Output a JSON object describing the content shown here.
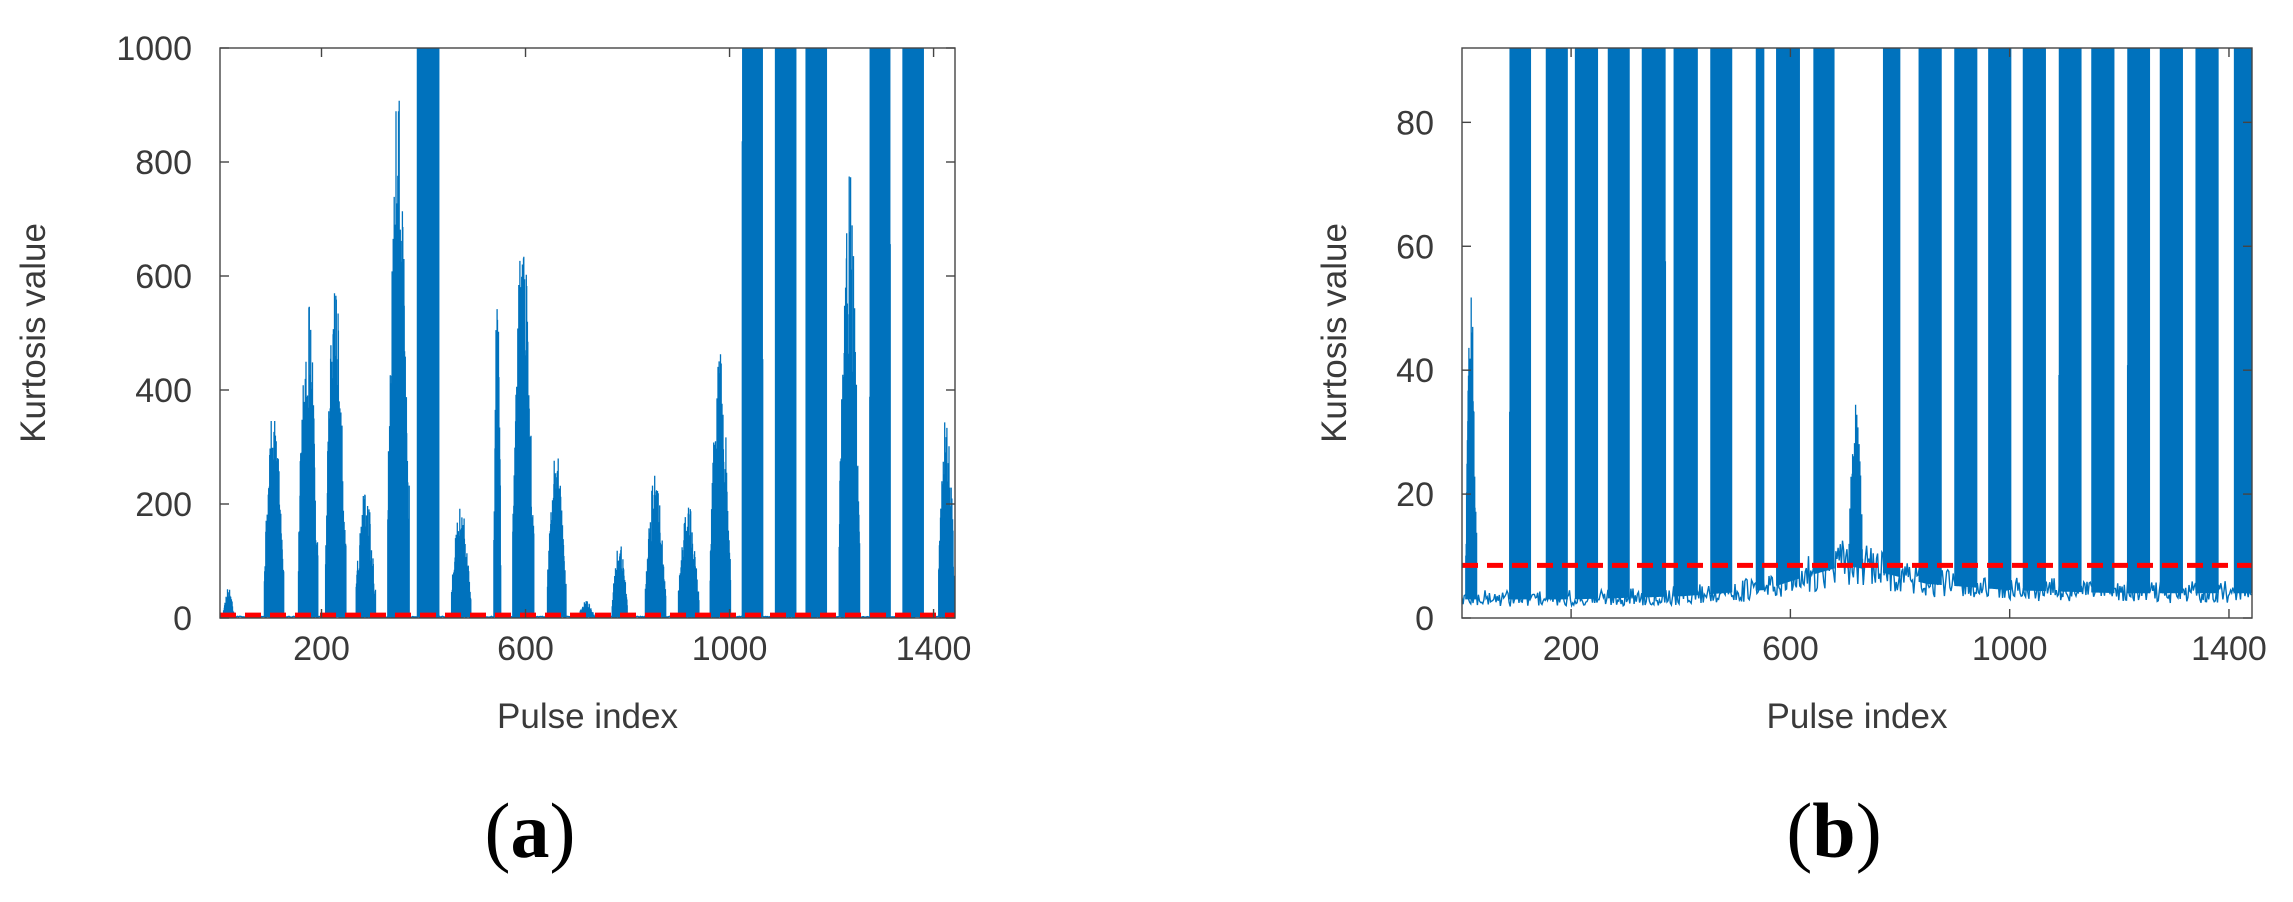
{
  "chart_data": [
    {
      "type": "line",
      "panel": "a",
      "xlabel": "Pulse index",
      "ylabel": "Kurtosis value",
      "xlim": [
        1,
        1442
      ],
      "ylim": [
        0,
        1000
      ],
      "xticks": [
        200,
        600,
        1000,
        1400
      ],
      "yticks": [
        0,
        200,
        400,
        600,
        800,
        1000
      ],
      "grid": false,
      "series_color": "#0072BD",
      "threshold": {
        "value": 5,
        "color": "#FF0000",
        "style": "dashed"
      },
      "bursts": [
        {
          "start": 8,
          "end": 28,
          "peak": 55
        },
        {
          "start": 88,
          "end": 126,
          "peak": 370
        },
        {
          "start": 155,
          "end": 193,
          "peak": 585
        },
        {
          "start": 208,
          "end": 248,
          "peak": 590
        },
        {
          "start": 268,
          "end": 306,
          "peak": 235
        },
        {
          "start": 330,
          "end": 372,
          "peak": 935
        },
        {
          "start": 388,
          "end": 430,
          "peak": 1000
        },
        {
          "start": 455,
          "end": 493,
          "peak": 200
        },
        {
          "start": 538,
          "end": 552,
          "peak": 635
        },
        {
          "start": 575,
          "end": 617,
          "peak": 685
        },
        {
          "start": 643,
          "end": 680,
          "peak": 305
        },
        {
          "start": 705,
          "end": 735,
          "peak": 30
        },
        {
          "start": 770,
          "end": 800,
          "peak": 135
        },
        {
          "start": 835,
          "end": 875,
          "peak": 250
        },
        {
          "start": 900,
          "end": 940,
          "peak": 200
        },
        {
          "start": 962,
          "end": 1002,
          "peak": 470
        },
        {
          "start": 1025,
          "end": 1065,
          "peak": 1000
        },
        {
          "start": 1090,
          "end": 1130,
          "peak": 1000
        },
        {
          "start": 1150,
          "end": 1190,
          "peak": 1000
        },
        {
          "start": 1215,
          "end": 1255,
          "peak": 800
        },
        {
          "start": 1275,
          "end": 1315,
          "peak": 1000
        },
        {
          "start": 1340,
          "end": 1380,
          "peak": 1000
        },
        {
          "start": 1410,
          "end": 1442,
          "peak": 365
        }
      ],
      "panel_label": {
        "letter": "a",
        "open": "(",
        "close": ")"
      }
    },
    {
      "type": "line",
      "panel": "b",
      "xlabel": "Pulse index",
      "ylabel": "Kurtosis value",
      "xlim": [
        1,
        1442
      ],
      "ylim": [
        0,
        92
      ],
      "xticks": [
        200,
        600,
        1000,
        1400
      ],
      "yticks": [
        0,
        20,
        40,
        60,
        80
      ],
      "grid": false,
      "series_color": "#0072BD",
      "threshold": {
        "value": 8.5,
        "color": "#FF0000",
        "style": "dashed"
      },
      "baseline": {
        "x": [
          1,
          200,
          400,
          550,
          620,
          700,
          760,
          850,
          1000,
          1200,
          1442
        ],
        "y": [
          3,
          3,
          3.5,
          4.5,
          6.5,
          8.5,
          7.5,
          5.5,
          4.5,
          4,
          4
        ]
      },
      "bursts": [
        {
          "start": 8,
          "end": 28,
          "peak": 55
        },
        {
          "start": 88,
          "end": 126,
          "peak": 92
        },
        {
          "start": 155,
          "end": 193,
          "peak": 92
        },
        {
          "start": 208,
          "end": 248,
          "peak": 92
        },
        {
          "start": 268,
          "end": 306,
          "peak": 92
        },
        {
          "start": 330,
          "end": 372,
          "peak": 92
        },
        {
          "start": 388,
          "end": 430,
          "peak": 92
        },
        {
          "start": 455,
          "end": 493,
          "peak": 92
        },
        {
          "start": 538,
          "end": 552,
          "peak": 92
        },
        {
          "start": 575,
          "end": 617,
          "peak": 92
        },
        {
          "start": 643,
          "end": 680,
          "peak": 92
        },
        {
          "start": 705,
          "end": 735,
          "peak": 35
        },
        {
          "start": 770,
          "end": 800,
          "peak": 92
        },
        {
          "start": 835,
          "end": 875,
          "peak": 92
        },
        {
          "start": 900,
          "end": 940,
          "peak": 92
        },
        {
          "start": 962,
          "end": 1002,
          "peak": 92
        },
        {
          "start": 1025,
          "end": 1065,
          "peak": 92
        },
        {
          "start": 1090,
          "end": 1130,
          "peak": 92
        },
        {
          "start": 1150,
          "end": 1190,
          "peak": 92
        },
        {
          "start": 1215,
          "end": 1255,
          "peak": 92
        },
        {
          "start": 1275,
          "end": 1315,
          "peak": 92
        },
        {
          "start": 1340,
          "end": 1380,
          "peak": 92
        },
        {
          "start": 1410,
          "end": 1442,
          "peak": 92
        }
      ],
      "panel_label": {
        "letter": "b",
        "open": "(",
        "close": ")"
      }
    }
  ]
}
